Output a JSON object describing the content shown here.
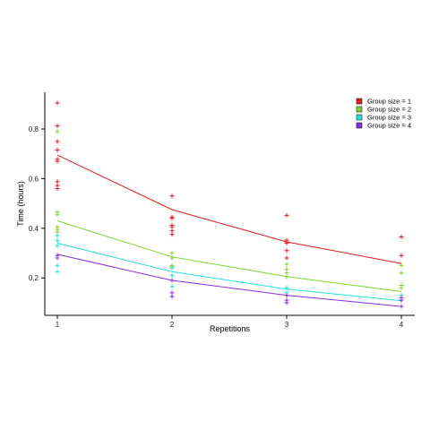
{
  "chart_data": {
    "type": "scatter",
    "title": "",
    "xlabel": "Repetitions",
    "ylabel": "Time (hours)",
    "xlim": [
      1,
      4
    ],
    "ylim": [
      0.05,
      0.95
    ],
    "x_ticks": [
      "1",
      "2",
      "3",
      "4"
    ],
    "y_ticks": [
      "0.2",
      "0.4",
      "0.6",
      "0.8"
    ],
    "grid": false,
    "legend_position": "top-right",
    "series": [
      {
        "name": "Group size = 1",
        "color": "#e41a1c",
        "line": [
          0.695,
          0.475,
          0.345,
          0.258
        ],
        "points": {
          "1": [
            0.905,
            0.812,
            0.75,
            0.715,
            0.678,
            0.67,
            0.588,
            0.572,
            0.56
          ],
          "2": [
            0.53,
            0.445,
            0.44,
            0.412,
            0.405,
            0.39,
            0.375
          ],
          "3": [
            0.452,
            0.352,
            0.345,
            0.34,
            0.31,
            0.28
          ],
          "4": [
            0.365,
            0.29
          ]
        }
      },
      {
        "name": "Group size = 2",
        "color": "#7fd32a",
        "line": [
          0.43,
          0.285,
          0.205,
          0.145
        ],
        "points": {
          "1": [
            0.79,
            0.465,
            0.455,
            0.405,
            0.395,
            0.385
          ],
          "2": [
            0.3,
            0.28,
            0.25,
            0.245
          ],
          "3": [
            0.255,
            0.235,
            0.22,
            0.205
          ],
          "4": [
            0.25,
            0.22,
            0.17,
            0.16
          ]
        }
      },
      {
        "name": "Group size = 3",
        "color": "#22e0e0",
        "line": [
          0.34,
          0.225,
          0.155,
          0.108
        ],
        "points": {
          "1": [
            0.37,
            0.35,
            0.33,
            0.25,
            0.225
          ],
          "2": [
            0.24,
            0.21,
            0.19,
            0.165
          ],
          "3": [
            0.16,
            0.14,
            0.13
          ],
          "4": [
            0.13,
            0.12,
            0.11
          ]
        }
      },
      {
        "name": "Group size = 4",
        "color": "#8a2be2",
        "line": [
          0.295,
          0.19,
          0.13,
          0.085
        ],
        "points": {
          "1": [
            0.29,
            0.28
          ],
          "2": [
            0.19,
            0.14,
            0.125
          ],
          "3": [
            0.13,
            0.11,
            0.1
          ],
          "4": [
            0.12,
            0.11,
            0.085
          ]
        }
      }
    ]
  }
}
